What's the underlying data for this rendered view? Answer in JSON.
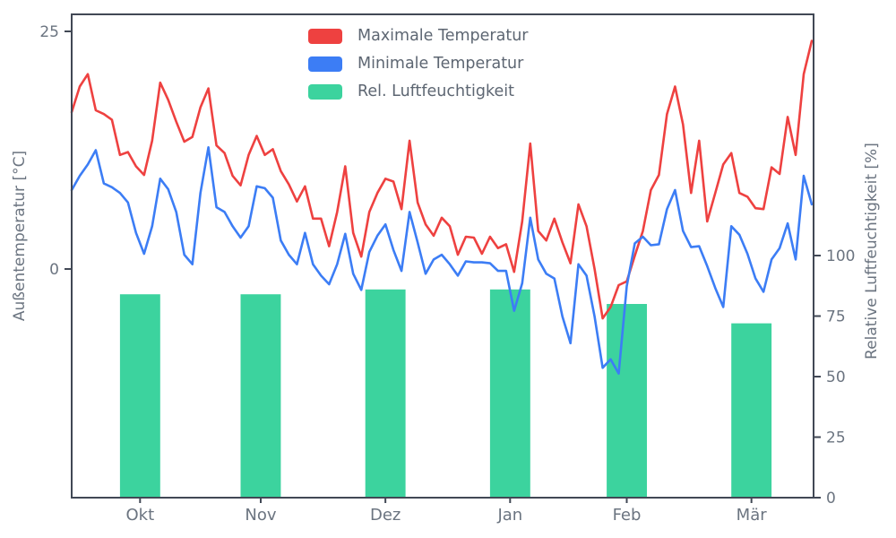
{
  "legend": {
    "items": [
      {
        "label": "Maximale Temperatur",
        "color": "#ee4140"
      },
      {
        "label": "Minimale Temperatur",
        "color": "#3c7df5"
      },
      {
        "label": "Rel. Luftfeuchtigkeit",
        "color": "#3cd39e"
      }
    ]
  },
  "axes": {
    "left_label": "Außentemperatur [°C]",
    "right_label": "Relative Luftfeuchtigkeit [%]",
    "spine_color": "#414855",
    "tick_text_color": "#6b7480"
  },
  "chart_data": {
    "type": "line+bar",
    "title": "",
    "x_unit": "days, late September to late March, 2-day sampling",
    "x_tick_labels": [
      "Okt",
      "Nov",
      "Dez",
      "Jan",
      "Feb",
      "Mär"
    ],
    "x_tick_days": [
      17,
      47,
      78,
      109,
      138,
      169
    ],
    "x_range_days": [
      0,
      184
    ],
    "y_left": {
      "label": "Außentemperatur [°C]",
      "ticks": [
        25,
        0
      ],
      "range": [
        -24.1,
        26.8
      ]
    },
    "y_right": {
      "label": "Relative Luftfeuchtigkeit [%]",
      "ticks": [
        100,
        75,
        50,
        25,
        0
      ],
      "range": [
        0,
        199.6
      ]
    },
    "grid": false,
    "legend_position": "upper center-left, no frame",
    "series": [
      {
        "name": "Maximale Temperatur",
        "type": "line",
        "axis": "left",
        "color": "#ee4140",
        "day_step": 2,
        "values": [
          16.5,
          19.2,
          20.5,
          16.7,
          16.3,
          15.7,
          12.0,
          12.3,
          10.8,
          9.9,
          13.5,
          19.6,
          17.8,
          15.5,
          13.4,
          13.9,
          17.0,
          19.0,
          13.0,
          12.2,
          9.8,
          8.8,
          12.0,
          14.0,
          12.0,
          12.6,
          10.3,
          8.9,
          7.1,
          8.7,
          5.3,
          5.3,
          2.4,
          6.0,
          10.8,
          3.8,
          1.3,
          6.0,
          8.0,
          9.5,
          9.2,
          6.3,
          13.5,
          7.0,
          4.7,
          3.5,
          5.4,
          4.5,
          1.5,
          3.4,
          3.3,
          1.6,
          3.4,
          2.2,
          2.6,
          -0.3,
          5.0,
          13.2,
          4.0,
          3.0,
          5.3,
          2.8,
          0.6,
          6.8,
          4.5,
          0.0,
          -5.2,
          -4.0,
          -1.7,
          -1.3,
          1.4,
          4.0,
          8.3,
          9.9,
          16.3,
          19.2,
          15.2,
          8.0,
          13.5,
          5.0,
          8.0,
          11.0,
          12.2,
          8.0,
          7.6,
          6.4,
          6.3,
          10.7,
          10.0,
          16.0,
          12.0,
          20.5,
          24.0
        ]
      },
      {
        "name": "Minimale Temperatur",
        "type": "line",
        "axis": "left",
        "color": "#3c7df5",
        "day_step": 2,
        "values": [
          8.3,
          9.8,
          11.0,
          12.5,
          9.0,
          8.6,
          8.0,
          7.0,
          3.8,
          1.6,
          4.5,
          9.5,
          8.4,
          6.0,
          1.5,
          0.5,
          8.0,
          12.8,
          6.5,
          6.0,
          4.5,
          3.3,
          4.5,
          8.7,
          8.5,
          7.5,
          3.0,
          1.5,
          0.5,
          3.8,
          0.5,
          -0.7,
          -1.6,
          0.5,
          3.7,
          -0.5,
          -2.2,
          1.8,
          3.5,
          4.7,
          2.0,
          -0.2,
          6.0,
          2.8,
          -0.5,
          1.0,
          1.5,
          0.5,
          -0.7,
          0.8,
          0.7,
          0.7,
          0.6,
          -0.2,
          -0.2,
          -4.4,
          -1.5,
          5.4,
          1.0,
          -0.5,
          -1.0,
          -5.0,
          -7.8,
          0.5,
          -0.7,
          -5.0,
          -10.4,
          -9.5,
          -11.0,
          -1.8,
          2.7,
          3.4,
          2.5,
          2.6,
          6.3,
          8.3,
          4.0,
          2.3,
          2.4,
          0.3,
          -2.0,
          -4.0,
          4.5,
          3.6,
          1.6,
          -1.0,
          -2.4,
          1.0,
          2.2,
          4.8,
          1.0,
          9.8,
          6.8
        ]
      },
      {
        "name": "Rel. Luftfeuchtigkeit",
        "type": "bar",
        "axis": "right",
        "color": "#3cd39e",
        "bar_center_days": [
          17,
          47,
          78,
          109,
          138,
          169
        ],
        "bar_width_days": 10,
        "values": [
          84,
          84,
          86,
          86,
          80,
          72
        ]
      }
    ]
  }
}
